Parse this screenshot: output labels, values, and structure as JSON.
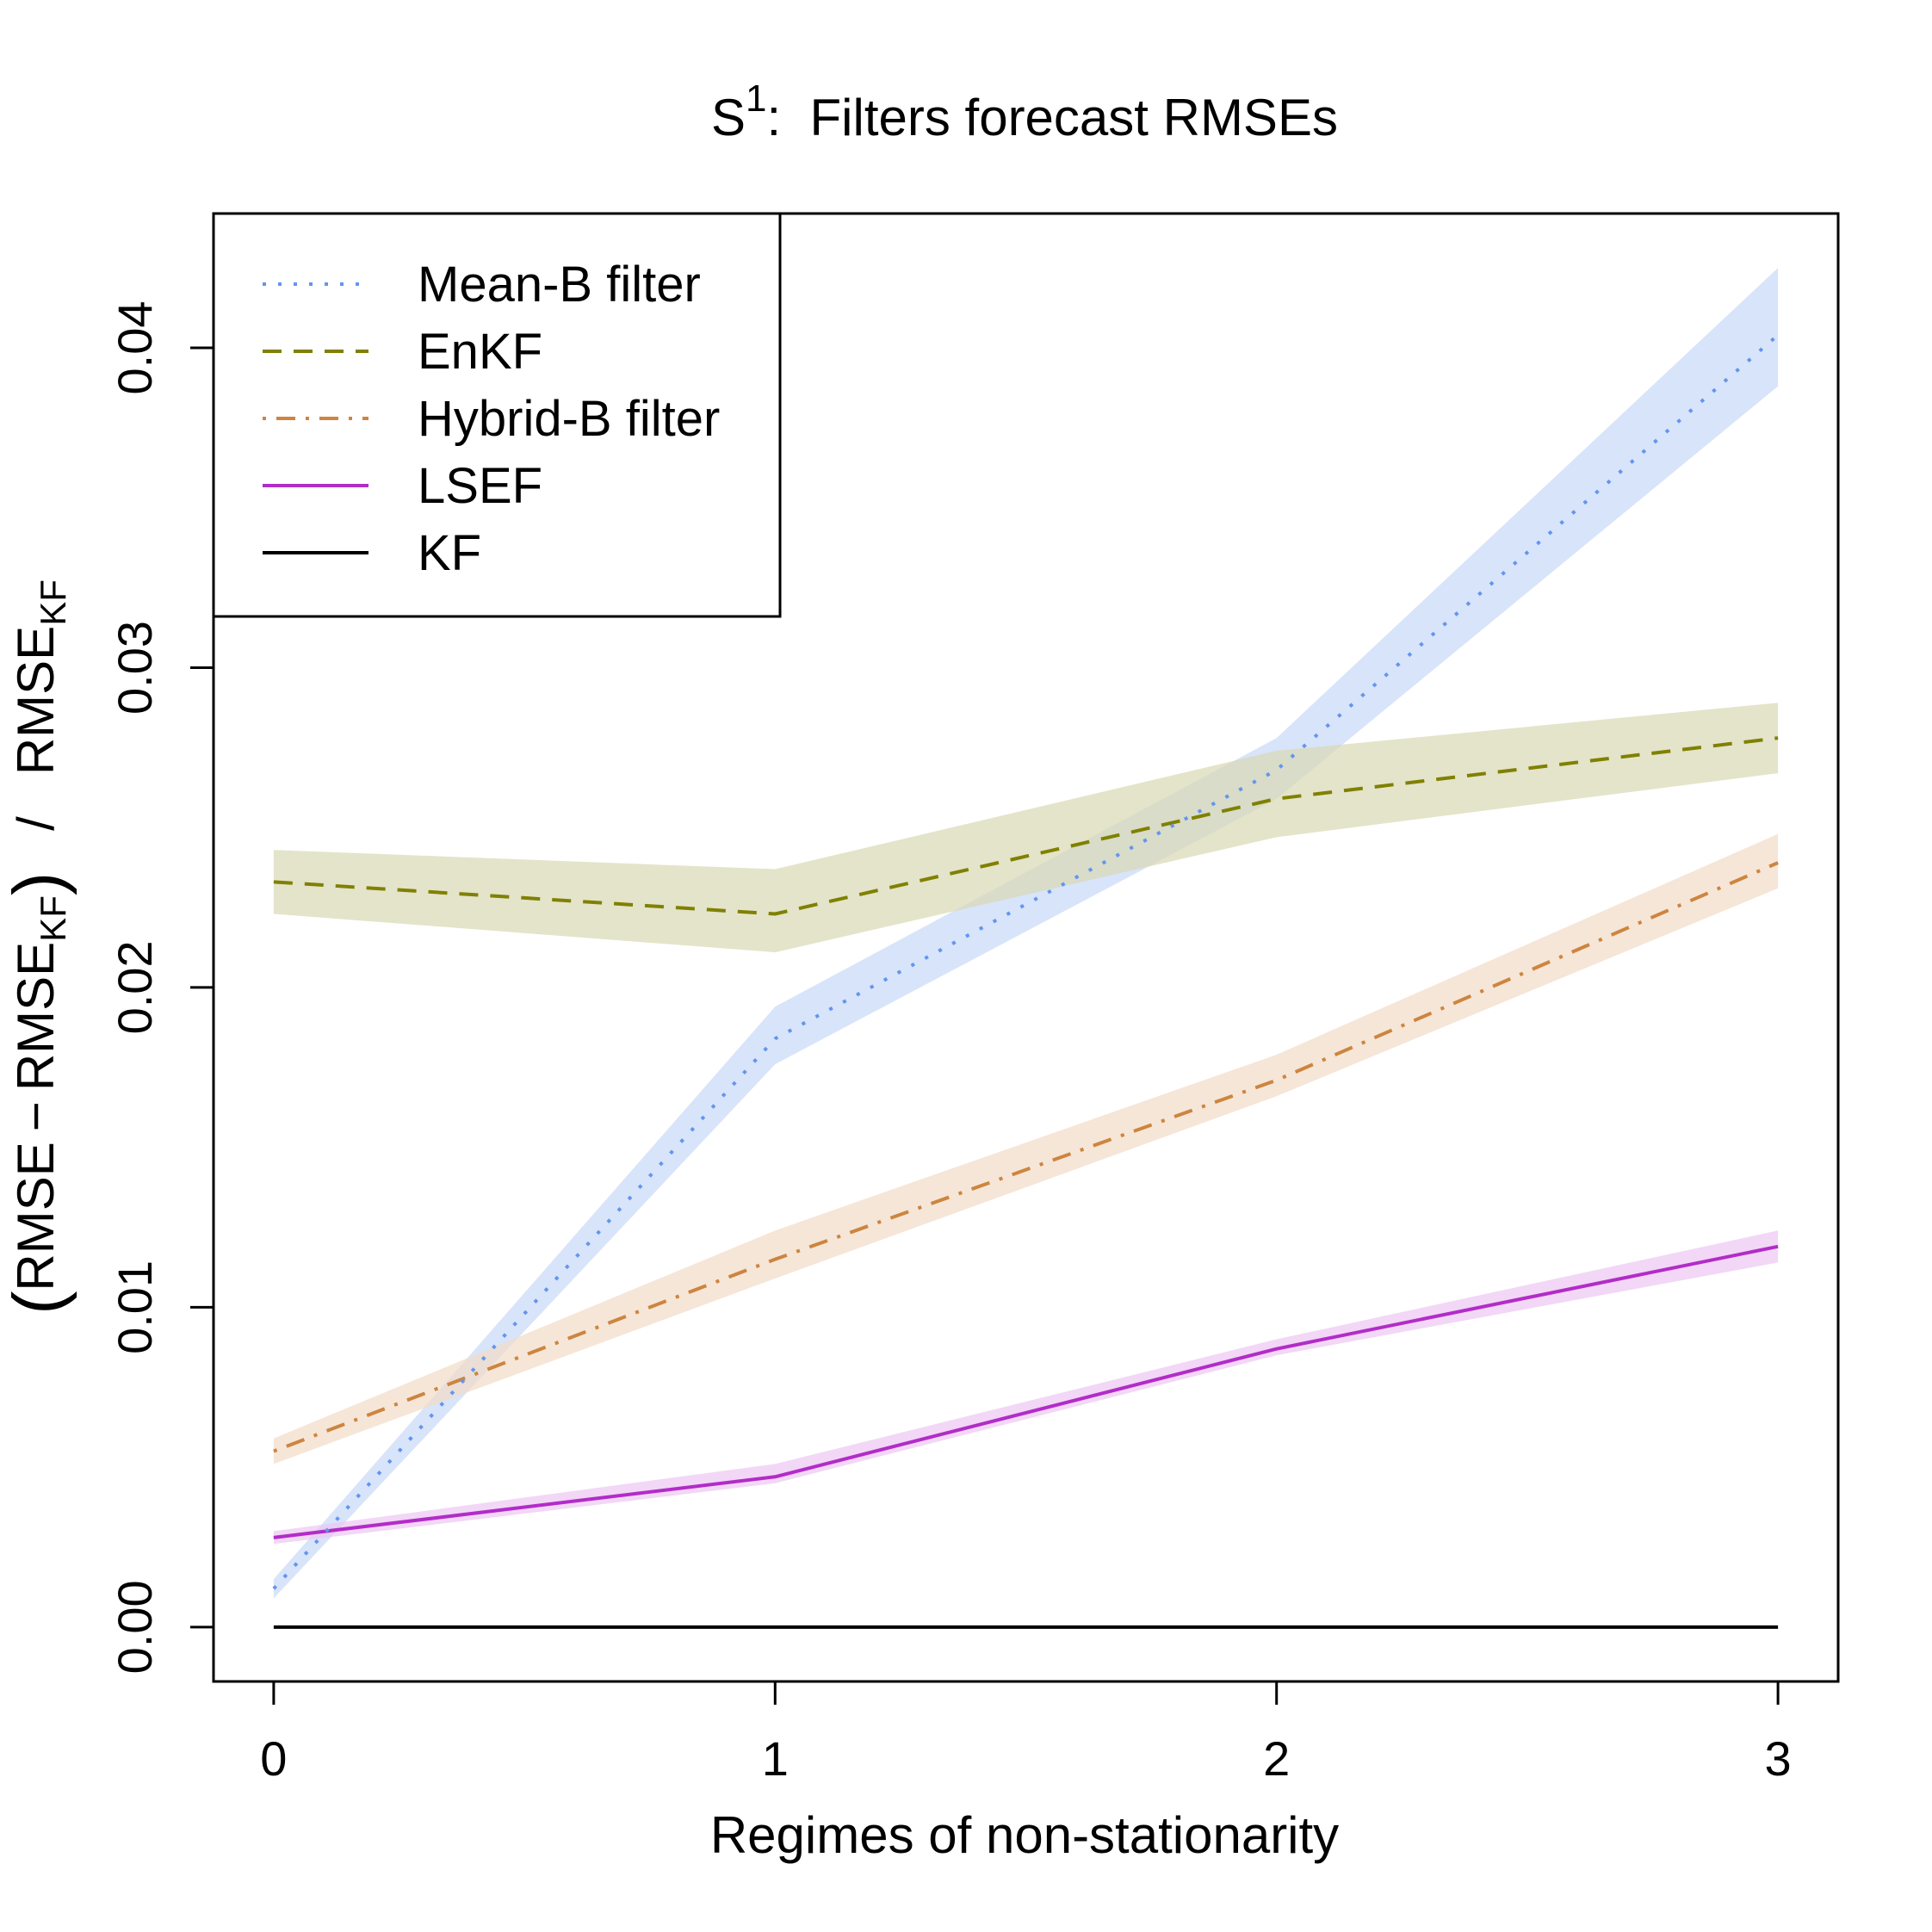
{
  "chart_data": {
    "type": "line",
    "title": {
      "base": "S",
      "superscript": "1",
      "suffix": ":  Filters forecast RMSEs"
    },
    "xlabel": "Regimes of non-stationarity",
    "ylabel": {
      "open_paren": "(",
      "part1": "RMSE − RMSE",
      "sub1": "KF",
      "close_paren": ")",
      "divider": "/",
      "part2": "RMSE",
      "sub2": "KF"
    },
    "x": [
      0,
      1,
      2,
      3
    ],
    "xlim": [
      -0.12,
      3.12
    ],
    "ylim": [
      -0.0017,
      0.0442
    ],
    "x_ticks": [
      0,
      1,
      2,
      3
    ],
    "x_tick_labels": [
      "0",
      "1",
      "2",
      "3"
    ],
    "y_ticks": [
      0.0,
      0.01,
      0.02,
      0.03,
      0.04
    ],
    "y_tick_labels": [
      "0.00",
      "0.01",
      "0.02",
      "0.03",
      "0.04"
    ],
    "grid": false,
    "legend_position": "top-left",
    "series": [
      {
        "name": "Mean-B filter",
        "color": "#6495ED",
        "band_color": "#C8D9F7",
        "dash": "dotted",
        "values": [
          0.0012,
          0.0184,
          0.0268,
          0.0404
        ],
        "lower": [
          0.0009,
          0.0176,
          0.0259,
          0.0388
        ],
        "upper": [
          0.0015,
          0.0194,
          0.0278,
          0.0425
        ]
      },
      {
        "name": "EnKF",
        "color": "#808000",
        "band_color": "#D9D9B3",
        "dash": "dashed",
        "values": [
          0.0233,
          0.0223,
          0.0259,
          0.0278
        ],
        "lower": [
          0.0223,
          0.0211,
          0.0247,
          0.0267
        ],
        "upper": [
          0.0243,
          0.0237,
          0.0274,
          0.0289
        ]
      },
      {
        "name": "Hybrid-B filter",
        "color": "#CD853F",
        "band_color": "#F2DBC8",
        "dash": "dotdash",
        "values": [
          0.0055,
          0.0115,
          0.0171,
          0.0239
        ],
        "lower": [
          0.0051,
          0.0109,
          0.0166,
          0.0231
        ],
        "upper": [
          0.0059,
          0.0124,
          0.0179,
          0.0248
        ]
      },
      {
        "name": "LSEF",
        "color": "#B22CC8",
        "band_color": "#EDC6F2",
        "dash": "solid",
        "values": [
          0.0028,
          0.0047,
          0.0087,
          0.0119
        ],
        "lower": [
          0.0026,
          0.0045,
          0.0085,
          0.0114
        ],
        "upper": [
          0.003,
          0.0051,
          0.009,
          0.0124
        ]
      },
      {
        "name": "KF",
        "color": "#000000",
        "band_color": "",
        "dash": "solid",
        "values": [
          0.0,
          0.0,
          0.0,
          0.0
        ],
        "lower": [],
        "upper": []
      }
    ]
  }
}
